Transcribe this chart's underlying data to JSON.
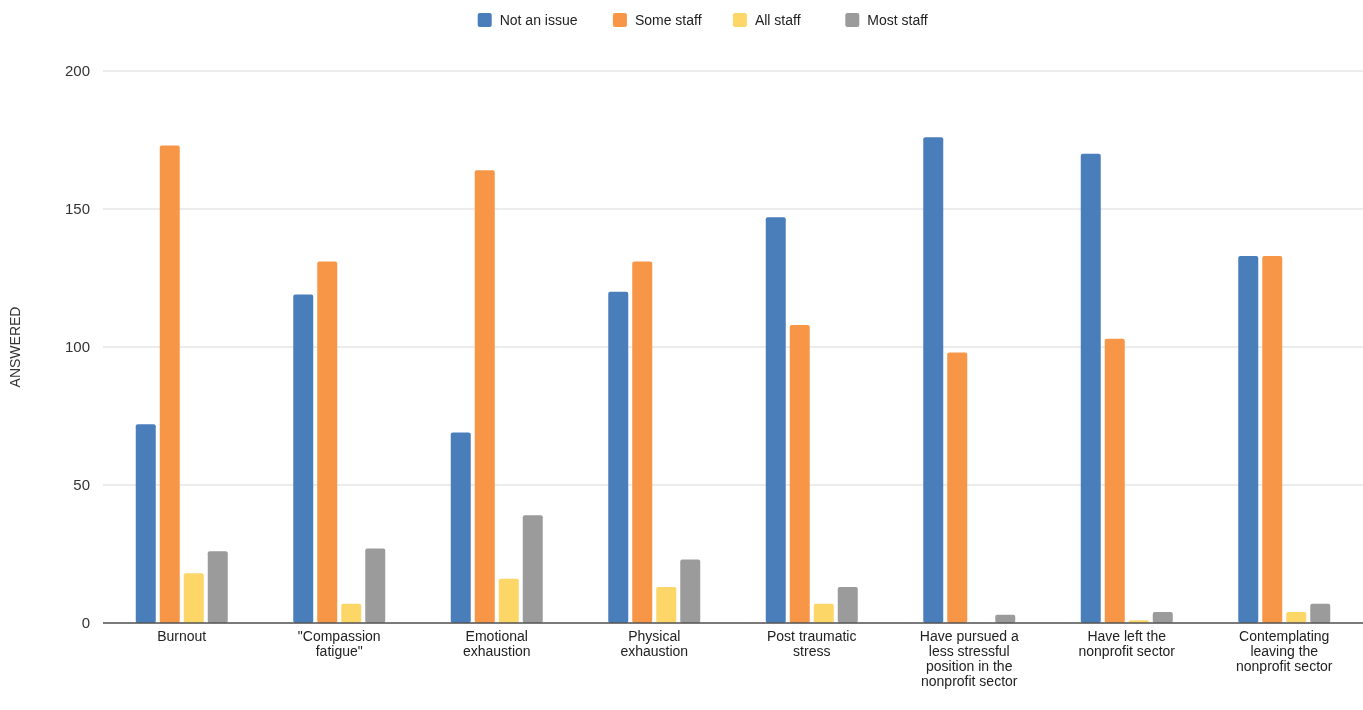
{
  "chart_data": {
    "type": "bar",
    "ylabel": "ANSWERED",
    "categories": [
      "Burnout",
      "\"Compassion fatigue\"",
      "Emotional exhaustion",
      "Physical exhaustion",
      "Post traumatic stress",
      "Have pursued a less stressful position in the nonprofit sector",
      "Have left the nonprofit sector",
      "Contemplating leaving the nonprofit sector"
    ],
    "series": [
      {
        "name": "Not an issue",
        "color": "#4a7ebb",
        "values": [
          72,
          119,
          69,
          120,
          147,
          176,
          170,
          133
        ]
      },
      {
        "name": "Some staff",
        "color": "#f79646",
        "values": [
          173,
          131,
          164,
          131,
          108,
          98,
          103,
          133
        ]
      },
      {
        "name": "All staff",
        "color": "#fcd667",
        "values": [
          18,
          7,
          16,
          13,
          7,
          0,
          1,
          4
        ]
      },
      {
        "name": "Most staff",
        "color": "#9b9b9b",
        "values": [
          26,
          27,
          39,
          23,
          13,
          3,
          4,
          7
        ]
      }
    ],
    "ylim": [
      0,
      200
    ],
    "yticks": [
      0,
      50,
      100,
      150,
      200
    ],
    "grid": "y",
    "legend": "top"
  }
}
